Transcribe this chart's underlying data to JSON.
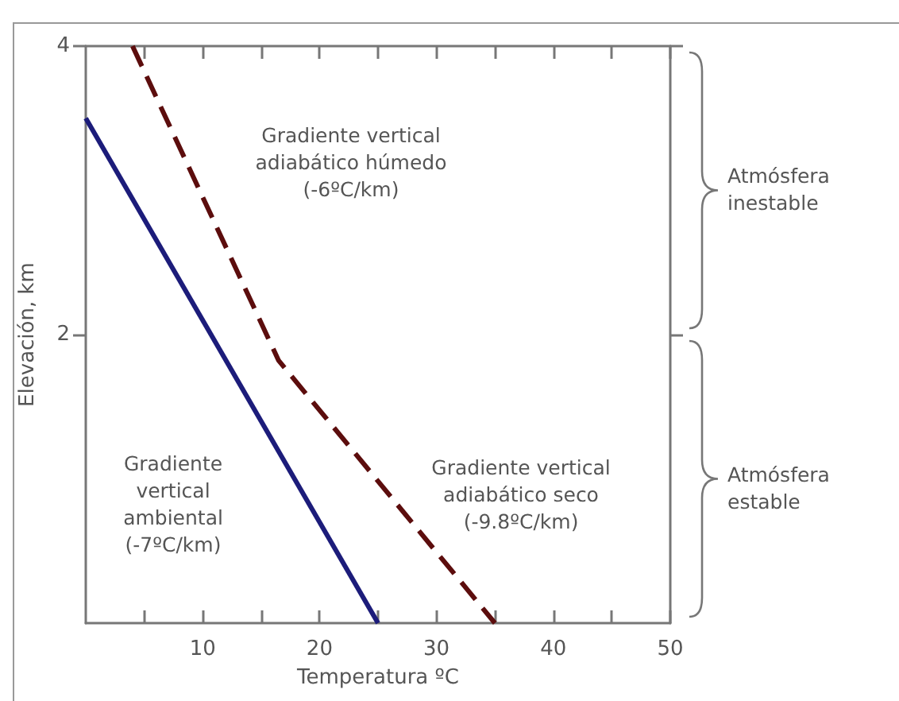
{
  "chart_data": {
    "type": "line",
    "xlabel": "Temperatura ºC",
    "ylabel": "Elevación, km",
    "xlim": [
      0,
      50
    ],
    "xticks": [
      {
        "value": 5,
        "label": null
      },
      10,
      {
        "value": 15,
        "label": null
      },
      20,
      {
        "value": 25,
        "label": null
      },
      30,
      {
        "value": 35,
        "label": null
      },
      40,
      {
        "value": 45,
        "label": null
      },
      50
    ],
    "ylim": [
      0,
      4
    ],
    "yticks": [
      2,
      4
    ],
    "series": [
      {
        "color": "#1c1c7a",
        "x": [
          0,
          25
        ],
        "values": [
          3.5,
          0
        ],
        "line_style": "solid"
      },
      {
        "color": "#5c0d0d",
        "x": [
          4,
          16.5,
          35
        ],
        "values": [
          4,
          1.82,
          0
        ],
        "line_style": "dashed"
      }
    ],
    "annotations": [
      "Gradiente vertical\nadiabático húmedo\n(-6ºC/km)",
      "Gradiente\nvertical\nambiental\n(-7ºC/km)",
      "Gradiente vertical\nadiabático seco\n(-9.8ºC/km)",
      "Atmósfera\ninestable",
      "Atmósfera\nestable"
    ],
    "marker": "none",
    "grid": false
  }
}
